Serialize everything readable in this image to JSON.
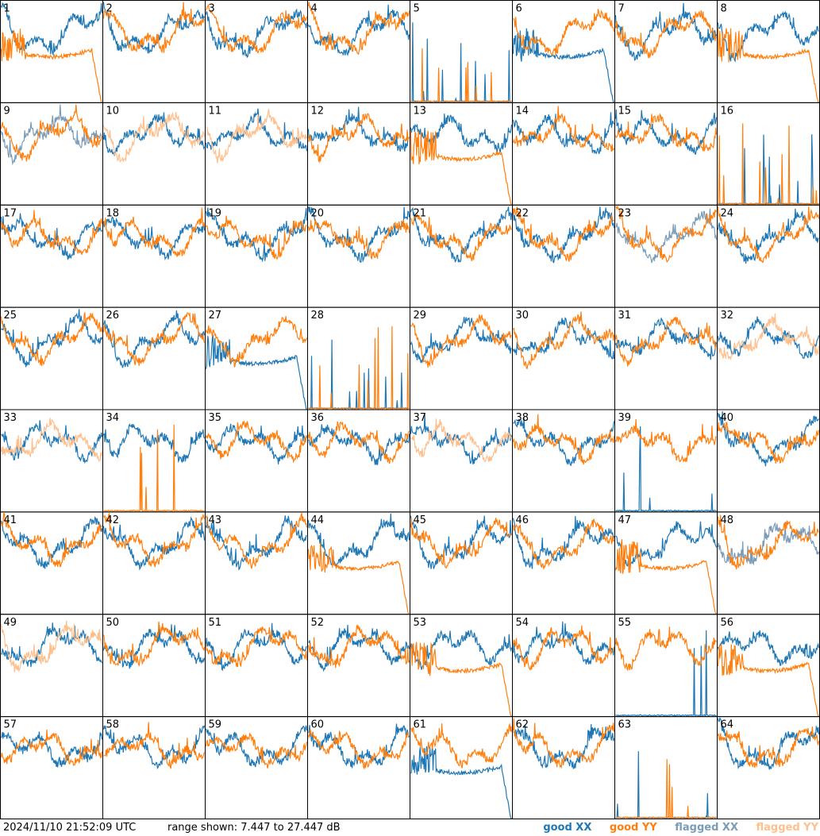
{
  "chart_data": {
    "type": "line",
    "layout": "8x8 small multiples",
    "panels": [
      "1",
      "2",
      "3",
      "4",
      "5",
      "6",
      "7",
      "8",
      "9",
      "10",
      "11",
      "12",
      "13",
      "14",
      "15",
      "16",
      "17",
      "18",
      "19",
      "20",
      "21",
      "22",
      "23",
      "24",
      "25",
      "26",
      "27",
      "28",
      "29",
      "30",
      "31",
      "32",
      "33",
      "34",
      "35",
      "36",
      "37",
      "38",
      "39",
      "40",
      "41",
      "42",
      "43",
      "44",
      "45",
      "46",
      "47",
      "48",
      "49",
      "50",
      "51",
      "52",
      "53",
      "54",
      "55",
      "56",
      "57",
      "58",
      "59",
      "60",
      "61",
      "62",
      "63",
      "64"
    ],
    "series": [
      {
        "name": "good XX",
        "color": "#1f77b4"
      },
      {
        "name": "good YY",
        "color": "#ff7f0e"
      },
      {
        "name": "flagged XX",
        "color": "#7a9cb8"
      },
      {
        "name": "flagged YY",
        "color": "#ffbf8c"
      }
    ],
    "ylim": [
      7.447,
      27.447
    ],
    "panel_status": {
      "flagged_xx": [
        "9",
        "23",
        "48"
      ],
      "flagged_yy": [
        "10",
        "11",
        "32",
        "33",
        "37",
        "49"
      ],
      "dead_xx": [
        "5",
        "16",
        "28",
        "39",
        "55",
        "63"
      ],
      "dead_yy": [
        "5",
        "16",
        "28",
        "34",
        "63"
      ],
      "rolloff_xx": [
        "6",
        "27",
        "61"
      ],
      "rolloff_yy": [
        "1",
        "8",
        "13",
        "44",
        "47",
        "53",
        "56"
      ]
    }
  },
  "footer": {
    "timestamp": "2024/11/10 21:52:09 UTC",
    "range": "range shown: 7.447 to 27.447 dB",
    "legend": {
      "good_xx": "good XX",
      "good_yy": "good YY",
      "flagged_xx": "flagged XX",
      "flagged_yy": "flagged YY"
    }
  }
}
